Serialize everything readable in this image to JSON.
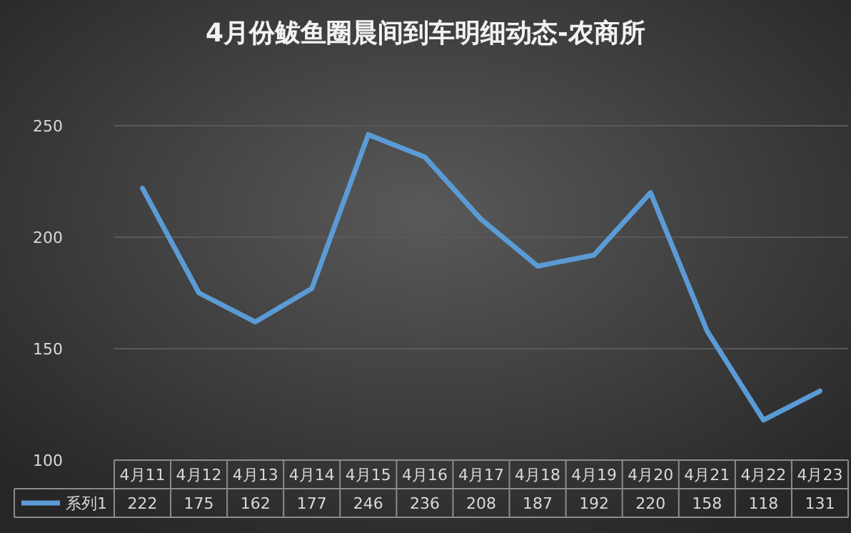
{
  "chart_data": {
    "type": "line",
    "title": "4月份鲅鱼圈晨间到车明细动态-农商所",
    "categories": [
      "4月11",
      "4月12",
      "4月13",
      "4月14",
      "4月15",
      "4月16",
      "4月17",
      "4月18",
      "4月19",
      "4月20",
      "4月21",
      "4月22",
      "4月23"
    ],
    "series": [
      {
        "name": "系列1",
        "color": "#5b9bd5",
        "values": [
          222,
          175,
          162,
          177,
          246,
          236,
          208,
          187,
          192,
          220,
          158,
          118,
          131
        ]
      }
    ],
    "ylim": [
      100,
      250
    ],
    "yticks": [
      100,
      150,
      200,
      250
    ],
    "grid": "y",
    "legend": "bottom",
    "data_labels": true
  }
}
